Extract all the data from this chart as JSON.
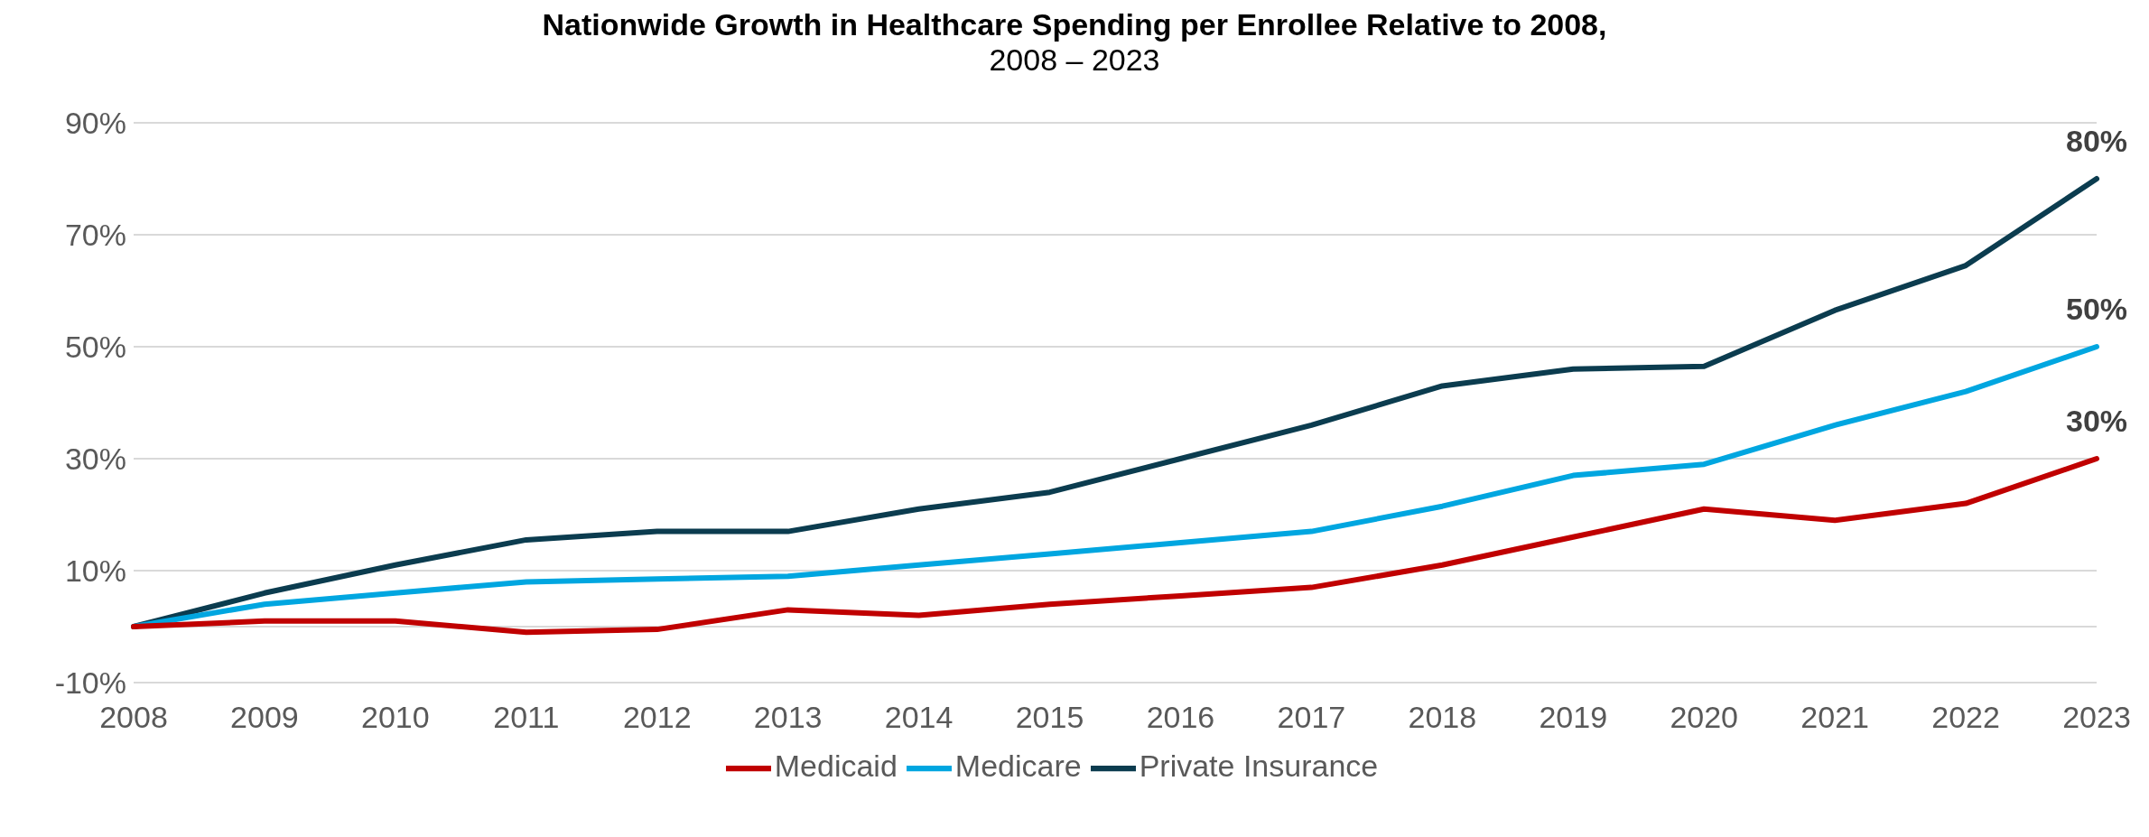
{
  "chart_data": {
    "type": "line",
    "title": "Nationwide Growth in Healthcare Spending per Enrollee Relative to 2008,",
    "subtitle": "2008 – 2023",
    "categories": [
      "2008",
      "2009",
      "2010",
      "2011",
      "2012",
      "2013",
      "2014",
      "2015",
      "2016",
      "2017",
      "2018",
      "2019",
      "2020",
      "2021",
      "2022",
      "2023"
    ],
    "series": [
      {
        "name": "Private Insurance",
        "color": "#0b3c4f",
        "values": [
          0,
          6,
          11,
          15.5,
          17,
          17,
          21,
          24,
          30,
          36,
          43,
          46,
          46.5,
          56.5,
          64.5,
          80
        ],
        "value_labels": [
          null,
          null,
          null,
          null,
          null,
          null,
          null,
          null,
          null,
          null,
          null,
          null,
          null,
          null,
          null,
          "80%"
        ]
      },
      {
        "name": "Medicare",
        "color": "#00a6e0",
        "values": [
          0,
          4,
          6,
          8,
          8.5,
          9,
          11,
          13,
          15,
          17,
          21.5,
          27,
          29,
          36,
          42,
          50
        ],
        "value_labels": [
          null,
          null,
          null,
          null,
          null,
          null,
          null,
          null,
          null,
          null,
          null,
          null,
          null,
          null,
          null,
          "50%"
        ]
      },
      {
        "name": "Medicaid",
        "color": "#c00000",
        "values": [
          0,
          1,
          1,
          -1,
          -0.5,
          3,
          2,
          4,
          5.5,
          7,
          11,
          16,
          21,
          19,
          22,
          30
        ],
        "value_labels": [
          null,
          null,
          null,
          null,
          null,
          null,
          null,
          null,
          null,
          null,
          null,
          null,
          null,
          null,
          null,
          "30%"
        ]
      }
    ],
    "ylim": [
      -10,
      90
    ],
    "yticks": [
      {
        "value": -10,
        "label": "-10%"
      },
      {
        "value": 0,
        "label": null
      },
      {
        "value": 10,
        "label": "10%"
      },
      {
        "value": 30,
        "label": "30%"
      },
      {
        "value": 50,
        "label": "50%"
      },
      {
        "value": 70,
        "label": "70%"
      },
      {
        "value": 90,
        "label": "90%"
      }
    ],
    "grid": "y",
    "legend": "bottom",
    "marker": "none",
    "line_style": "solid"
  }
}
